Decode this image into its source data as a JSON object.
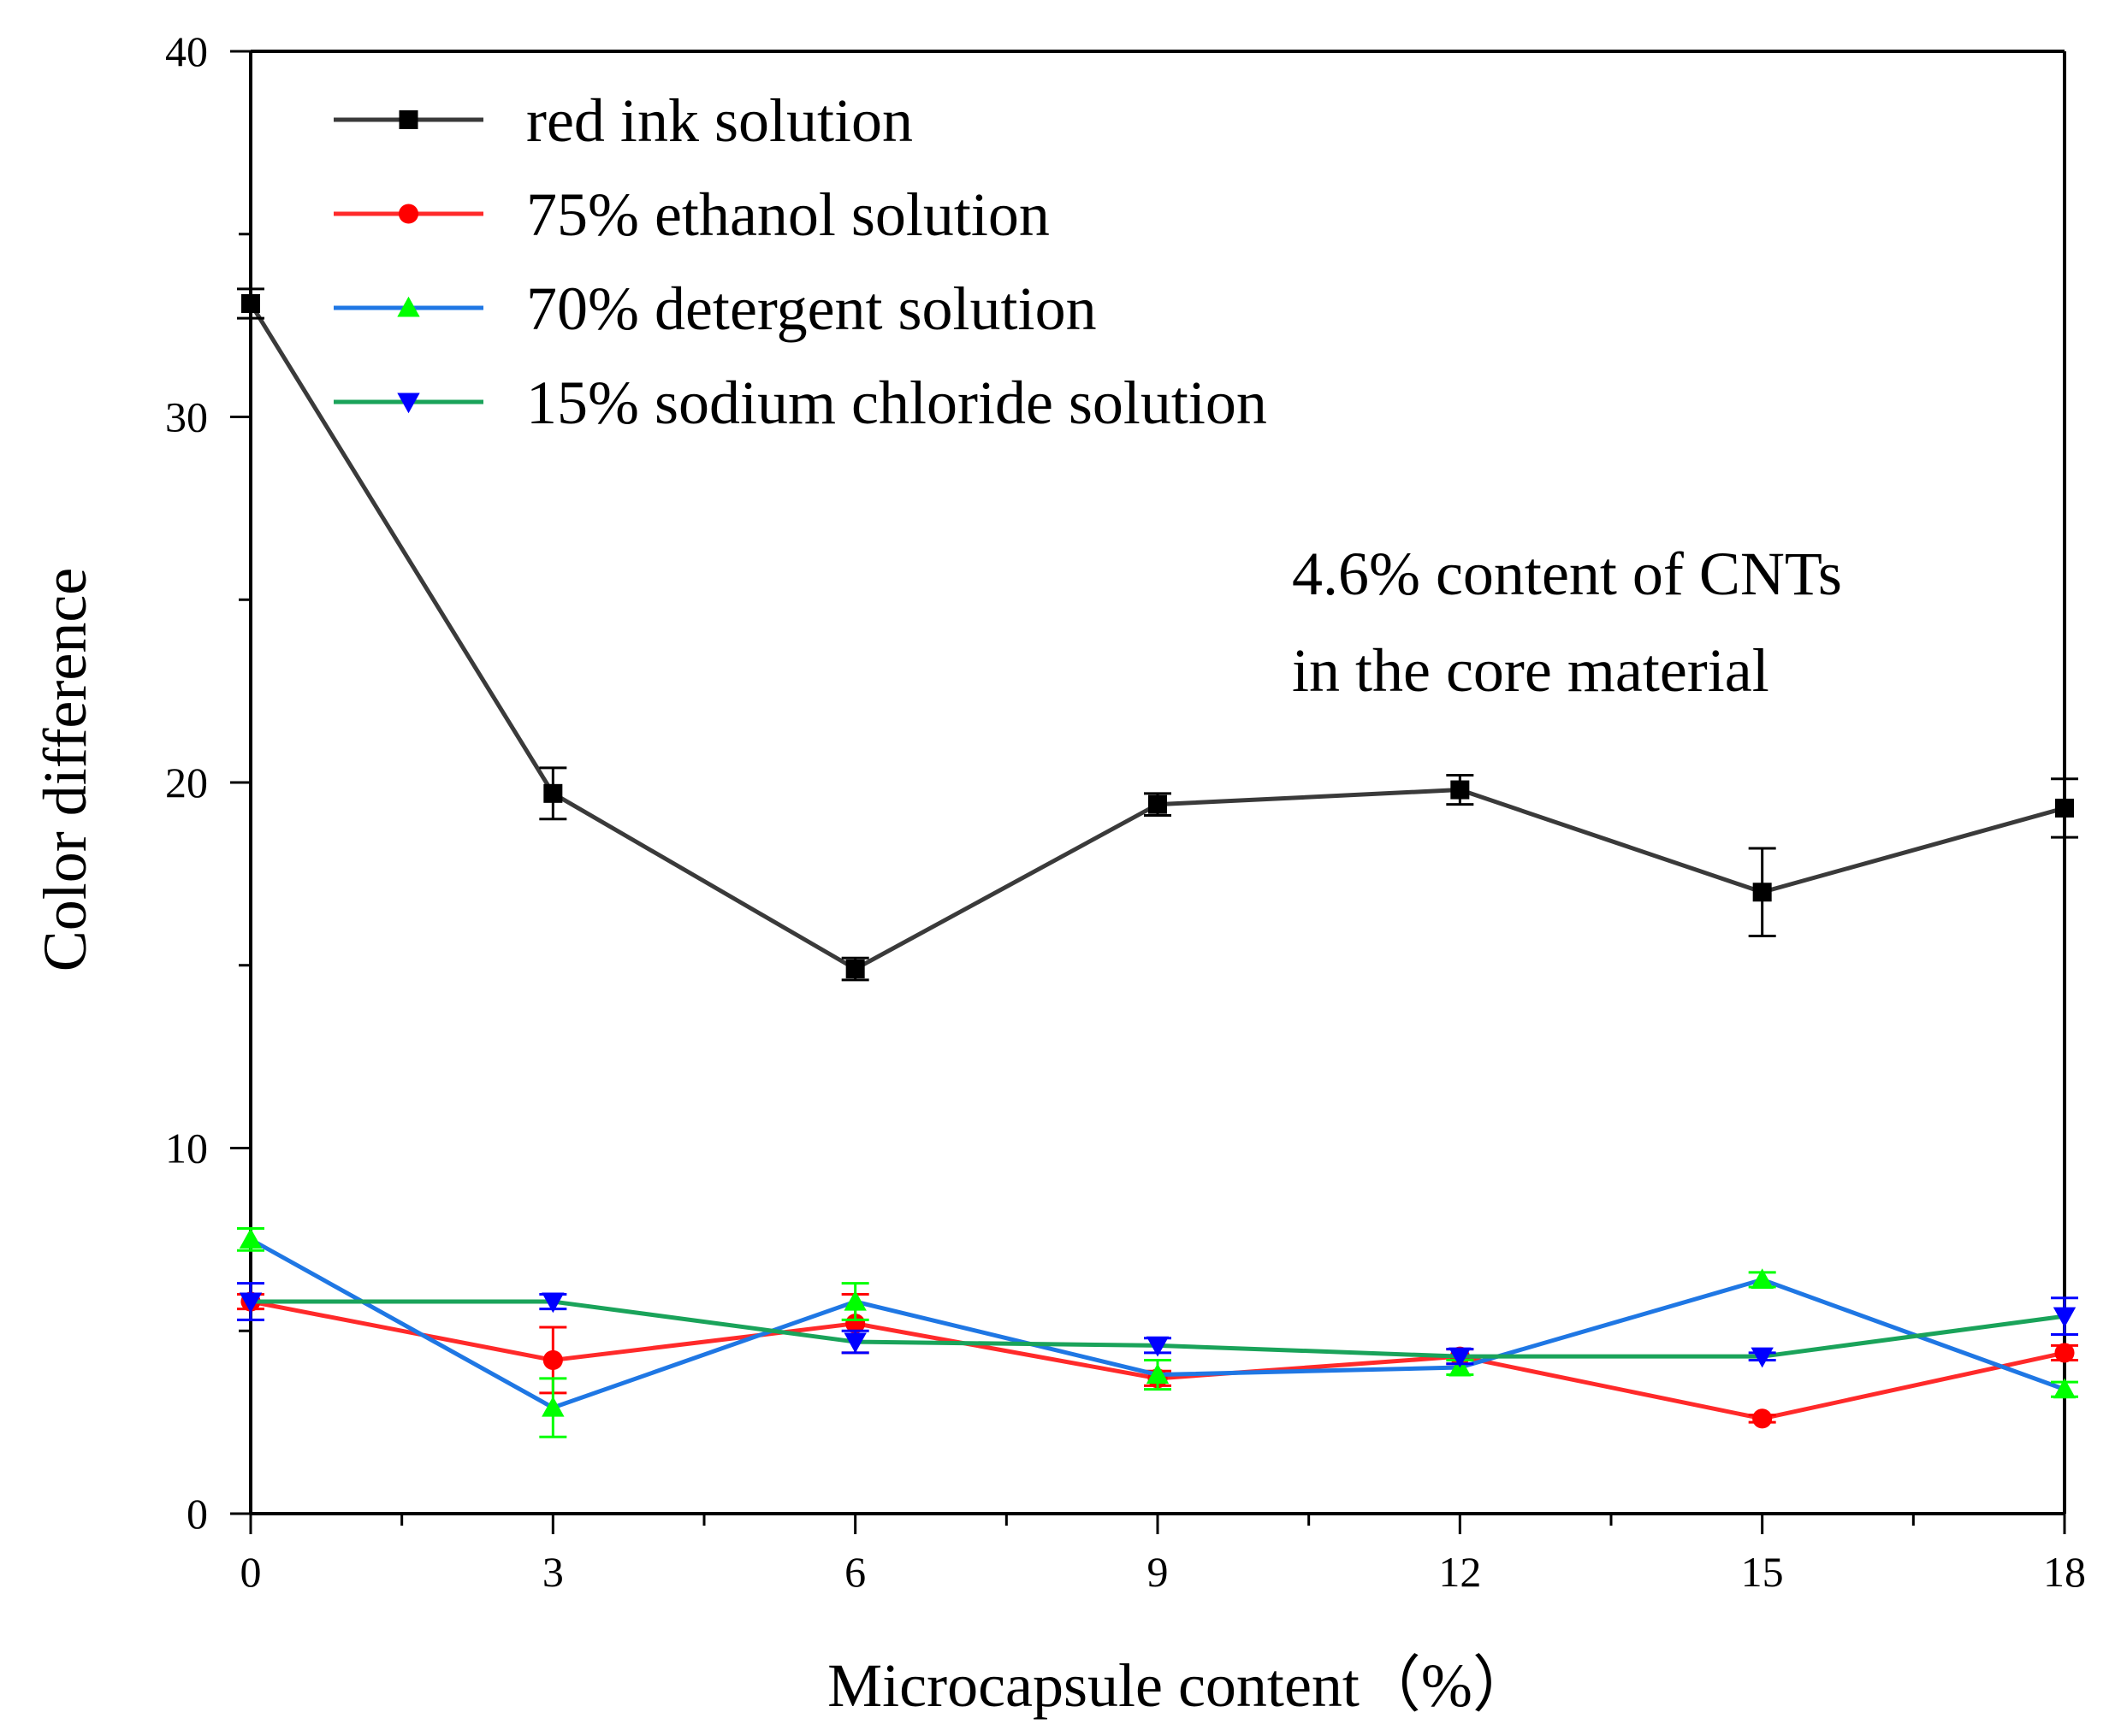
{
  "chart_data": {
    "type": "line",
    "xlabel": "Microcapsule content（%）",
    "ylabel": "Color difference",
    "xlim": [
      0,
      18
    ],
    "ylim": [
      0,
      40
    ],
    "x_ticks": [
      0,
      3,
      6,
      9,
      12,
      15,
      18
    ],
    "y_ticks": [
      0,
      10,
      20,
      30,
      40
    ],
    "x": [
      0,
      3,
      6,
      9,
      12,
      15,
      18
    ],
    "legend_position": "top-left",
    "series": [
      {
        "name": "red ink solution",
        "line_color": "#3a3a3a",
        "marker_color": "#000000",
        "marker": "square",
        "values": [
          33.1,
          19.7,
          14.9,
          19.4,
          19.8,
          17.0,
          19.3
        ],
        "errors": [
          0.4,
          0.7,
          0.3,
          0.3,
          0.4,
          1.2,
          0.8
        ]
      },
      {
        "name": "75% ethanol solution",
        "line_color": "#ff2a2a",
        "marker_color": "#ff0000",
        "marker": "circle",
        "values": [
          5.8,
          4.2,
          5.2,
          3.7,
          4.3,
          2.6,
          4.4
        ],
        "errors": [
          0.2,
          0.9,
          0.8,
          0.2,
          0.2,
          0.1,
          0.2
        ]
      },
      {
        "name": "70% detergent solution",
        "line_color": "#1f77e4",
        "marker_color": "#00ff00",
        "marker": "triangle-up",
        "values": [
          7.5,
          2.9,
          5.8,
          3.8,
          4.0,
          6.4,
          3.4
        ],
        "errors": [
          0.3,
          0.8,
          0.5,
          0.4,
          0.2,
          0.2,
          0.2
        ]
      },
      {
        "name": "15% sodium chloride solution",
        "line_color": "#1aa35a",
        "marker_color": "#0000ff",
        "marker": "triangle-down",
        "values": [
          5.8,
          5.8,
          4.7,
          4.6,
          4.3,
          4.3,
          5.4
        ],
        "errors": [
          0.5,
          0.2,
          0.3,
          0.2,
          0.2,
          0.1,
          0.5
        ]
      }
    ],
    "annotation": [
      "4.6% content of CNTs",
      "in the core material"
    ]
  }
}
